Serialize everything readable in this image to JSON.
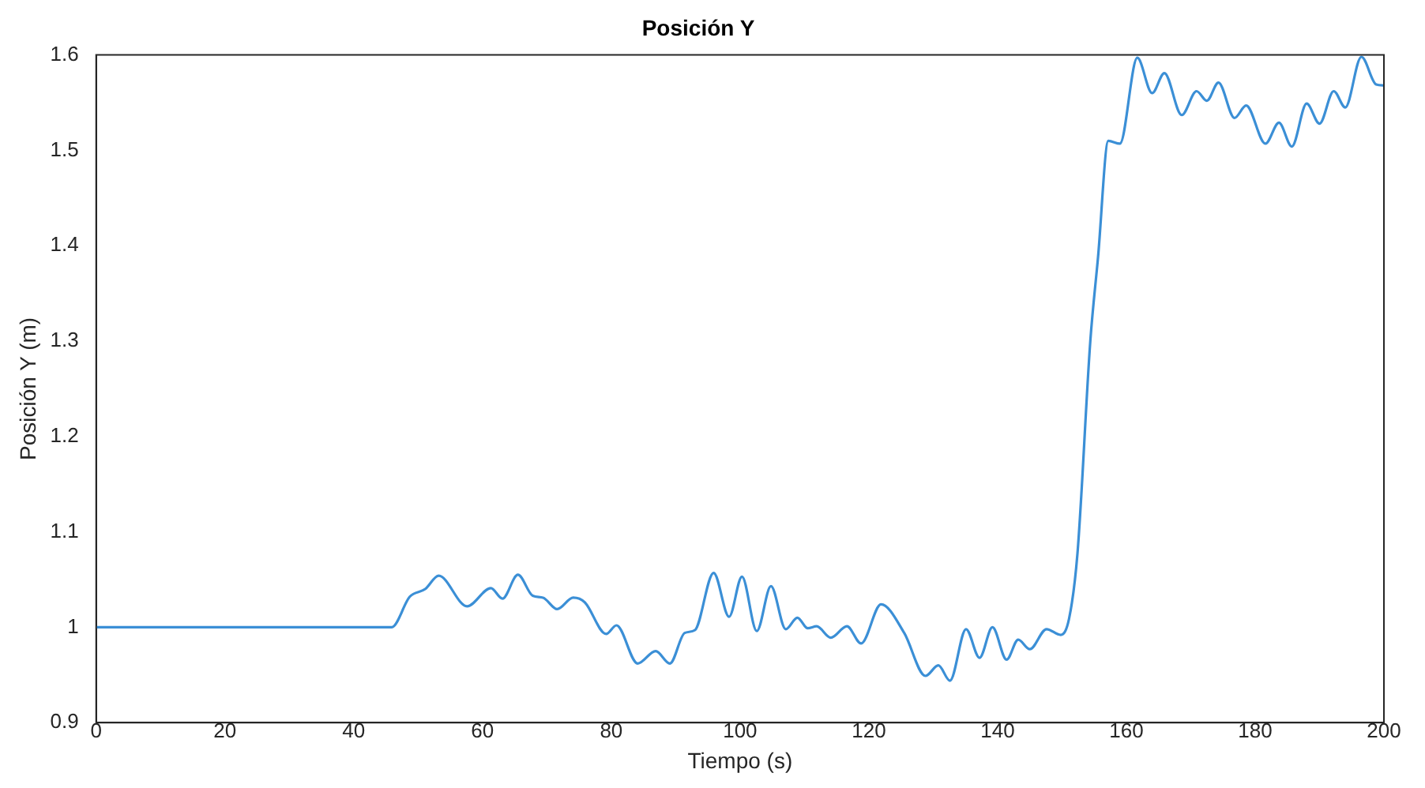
{
  "chart_data": {
    "type": "line",
    "title": "Posición Y",
    "xlabel": "Tiempo (s)",
    "ylabel": "Posición Y (m)",
    "x": [
      0,
      45.9,
      48.7,
      51.1,
      53.2,
      57.6,
      61.3,
      63.1,
      65.5,
      67.8,
      69.4,
      71.6,
      74.1,
      75.9,
      79.2,
      80.8,
      84.1,
      86.9,
      89.1,
      91.4,
      93.0,
      95.9,
      98.3,
      100.3,
      102.6,
      104.8,
      107.1,
      108.9,
      110.5,
      111.9,
      114.1,
      116.6,
      118.8,
      121.9,
      125.5,
      128.8,
      130.8,
      132.6,
      135.1,
      137.2,
      139.2,
      141.4,
      143.2,
      145.0,
      147.6,
      149.8,
      151.1,
      152.4,
      154.4,
      155.6,
      157.2,
      159.0,
      161.7,
      164.0,
      165.9,
      168.6,
      170.9,
      172.5,
      174.3,
      176.8,
      178.6,
      181.6,
      183.7,
      185.7,
      188.0,
      190.0,
      192.2,
      194.0,
      196.5,
      198.8,
      200
    ],
    "values": [
      1.0,
      1.0,
      1.032,
      1.04,
      1.054,
      1.022,
      1.041,
      1.03,
      1.055,
      1.033,
      1.031,
      1.019,
      1.031,
      1.026,
      0.993,
      1.002,
      0.962,
      0.975,
      0.962,
      0.994,
      0.997,
      1.057,
      1.011,
      1.053,
      0.996,
      1.043,
      0.998,
      1.01,
      0.999,
      1.001,
      0.989,
      1.001,
      0.983,
      1.024,
      0.994,
      0.949,
      0.96,
      0.944,
      0.998,
      0.968,
      1.0,
      0.966,
      0.987,
      0.977,
      0.998,
      0.992,
      1.009,
      1.077,
      1.3,
      1.388,
      1.51,
      1.507,
      1.597,
      1.56,
      1.581,
      1.537,
      1.562,
      1.552,
      1.571,
      1.534,
      1.547,
      1.507,
      1.529,
      1.504,
      1.549,
      1.528,
      1.562,
      1.545,
      1.598,
      1.569,
      1.568
    ],
    "color": "#3b8fd6",
    "xlim": [
      0,
      200
    ],
    "xticks": [
      0,
      20,
      40,
      60,
      80,
      100,
      120,
      140,
      160,
      180,
      200
    ],
    "ylim": [
      0.9,
      1.6
    ],
    "yticks": [
      0.9,
      1,
      1.1,
      1.2,
      1.3,
      1.4,
      1.5,
      1.6
    ],
    "grid": false,
    "legend": false,
    "marker": "none",
    "line_style": "solid"
  }
}
